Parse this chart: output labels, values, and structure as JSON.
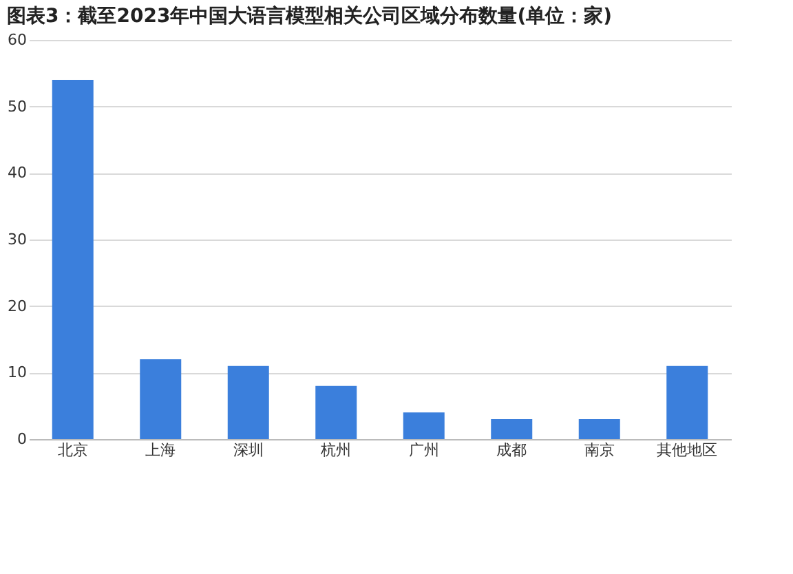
{
  "chart_data": {
    "type": "bar",
    "title": "图表3：截至2023年中国大语言模型相关公司区域分布数量(单位：家)",
    "categories": [
      "北京",
      "上海",
      "深圳",
      "杭州",
      "广州",
      "成都",
      "南京",
      "其他地区"
    ],
    "values": [
      54,
      12,
      11,
      8,
      4,
      3,
      3,
      11
    ],
    "color": "#3b7fdc",
    "ylim": [
      0,
      60
    ],
    "yticks": [
      0,
      10,
      20,
      30,
      40,
      50,
      60
    ],
    "grid": "y"
  }
}
